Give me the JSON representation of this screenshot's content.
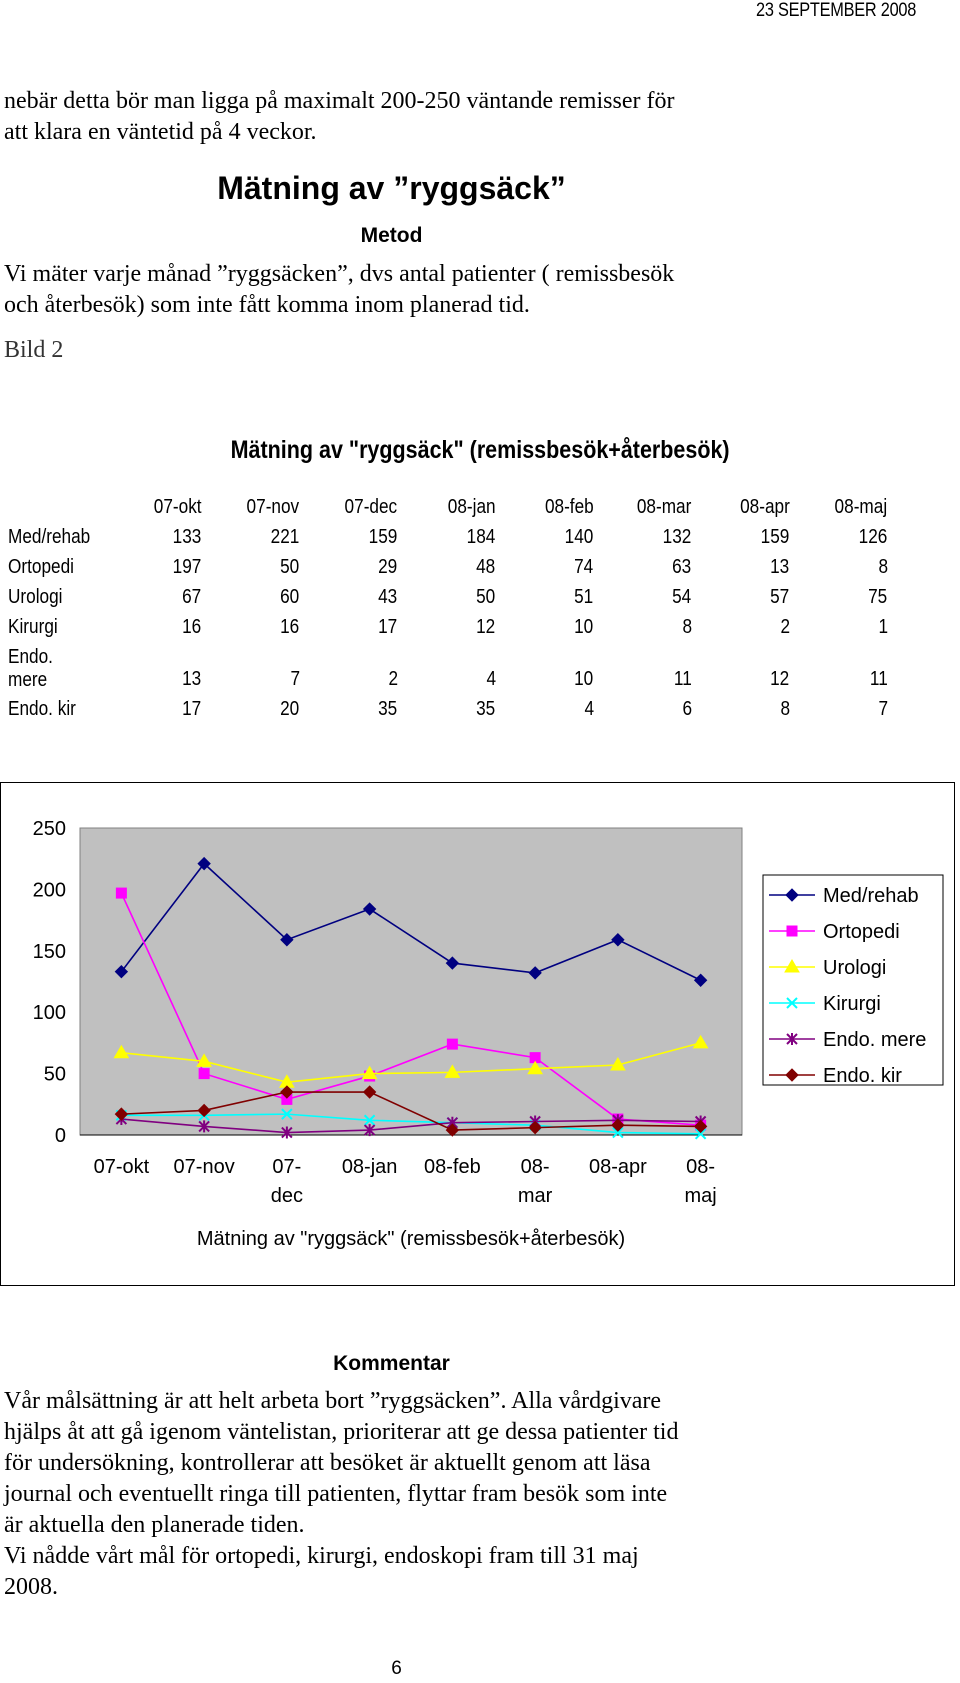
{
  "header": {
    "date": "23 SEPTEMBER 2008"
  },
  "intro": {
    "line1": "nebär detta bör man ligga på maximalt 200-250 väntande remisser för",
    "line2": "att klara en väntetid på 4 veckor."
  },
  "section": {
    "title": "Mätning av ”ryggsäck”"
  },
  "method": {
    "heading": "Metod",
    "line1": "Vi mäter varje månad ”ryggsäcken”, dvs antal patienter ( remissbesök",
    "line2": "och återbesök) som inte fått komma inom planerad tid."
  },
  "figure_label": "Bild 2",
  "table": {
    "title": "Mätning av \"ryggsäck\" (remissbesök+återbesök)",
    "columns": [
      "07-okt",
      "07-nov",
      "07-dec",
      "08-jan",
      "08-feb",
      "08-mar",
      "08-apr",
      "08-maj"
    ],
    "rows": [
      {
        "label": "Med/rehab",
        "values": [
          "133",
          "221",
          "159",
          "184",
          "140",
          "132",
          "159",
          "126"
        ]
      },
      {
        "label": "Ortopedi",
        "values": [
          "197",
          "50",
          "29",
          "48",
          "74",
          "63",
          "13",
          "8"
        ]
      },
      {
        "label": "Urologi",
        "values": [
          "67",
          "60",
          "43",
          "50",
          "51",
          "54",
          "57",
          "75"
        ]
      },
      {
        "label": "Kirurgi",
        "values": [
          "16",
          "16",
          "17",
          "12",
          "10",
          "8",
          "2",
          "1"
        ]
      },
      {
        "label_line1": "Endo.",
        "label_line2": "mere",
        "values": [
          "13",
          "7",
          "2",
          "4",
          "10",
          "11",
          "12",
          "11"
        ]
      },
      {
        "label": "Endo. kir",
        "values": [
          "17",
          "20",
          "35",
          "35",
          "4",
          "6",
          "8",
          "7"
        ]
      }
    ]
  },
  "chart_data": {
    "type": "line",
    "title": "",
    "xlabel": "Mätning av \"ryggsäck\" (remissbesök+återbesök)",
    "ylabel": "",
    "ylim": [
      0,
      250
    ],
    "yticks": [
      "0",
      "50",
      "100",
      "150",
      "200",
      "250"
    ],
    "categories": [
      "07-okt",
      "07-nov",
      "07-dec",
      "08-jan",
      "08-feb",
      "08-mar",
      "08-apr",
      "08-maj"
    ],
    "category_lines": [
      [
        "07-okt"
      ],
      [
        "07-nov"
      ],
      [
        "07-",
        "dec"
      ],
      [
        "08-jan"
      ],
      [
        "08-feb"
      ],
      [
        "08-",
        "mar"
      ],
      [
        "08-apr"
      ],
      [
        "08-",
        "maj"
      ]
    ],
    "grid": false,
    "plot_background": "#c0c0c0",
    "legend_position": "right",
    "series": [
      {
        "name": "Med/rehab",
        "color": "#000080",
        "marker": "diamond",
        "values": [
          133,
          221,
          159,
          184,
          140,
          132,
          159,
          126
        ]
      },
      {
        "name": "Ortopedi",
        "color": "#ff00ff",
        "marker": "square",
        "values": [
          197,
          50,
          29,
          48,
          74,
          63,
          13,
          8
        ]
      },
      {
        "name": "Urologi",
        "color": "#ffff00",
        "marker": "triangle",
        "values": [
          67,
          60,
          43,
          50,
          51,
          54,
          57,
          75
        ]
      },
      {
        "name": "Kirurgi",
        "color": "#00ffff",
        "marker": "x",
        "values": [
          16,
          16,
          17,
          12,
          10,
          8,
          2,
          1
        ]
      },
      {
        "name": "Endo. mere",
        "color": "#800080",
        "marker": "star",
        "values": [
          13,
          7,
          2,
          4,
          10,
          11,
          12,
          11
        ]
      },
      {
        "name": "Endo. kir",
        "color": "#800000",
        "marker": "diamond",
        "values": [
          17,
          20,
          35,
          35,
          4,
          6,
          8,
          7
        ]
      }
    ]
  },
  "comment": {
    "heading": "Kommentar",
    "lines": [
      "Vår målsättning är att helt arbeta bort ”ryggsäcken”. Alla vårdgivare",
      "hjälps åt att gå igenom väntelistan, prioriterar att ge dessa patienter tid",
      "för undersökning, kontrollerar att besöket är aktuellt genom att läsa",
      "journal och eventuellt ringa till patienten, flyttar fram besök som inte",
      "är aktuella den planerade tiden.",
      "Vi nådde vårt mål för ortopedi, kirurgi, endoskopi fram till 31 maj",
      "2008."
    ]
  },
  "page_number": "6"
}
